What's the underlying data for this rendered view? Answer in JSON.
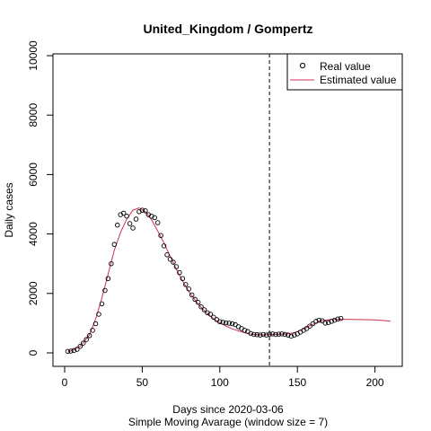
{
  "chart_data": {
    "type": "scatter",
    "title": "United_Kingdom / Gompertz",
    "xlabel": "Days since 2020-03-06",
    "xlabel2": "Simple Moving Avarage (window size = 7)",
    "ylabel": "Daily cases",
    "xlim": [
      0,
      210
    ],
    "ylim": [
      0,
      10000
    ],
    "x_ticks": [
      0,
      50,
      100,
      150,
      200
    ],
    "y_ticks": [
      0,
      2000,
      4000,
      6000,
      8000,
      10000
    ],
    "x_tick_labels": [
      "0",
      "50",
      "100",
      "150",
      "200"
    ],
    "y_tick_labels": [
      "0",
      "2000",
      "4000",
      "6000",
      "8000",
      "10000"
    ],
    "vline_x": 132,
    "legend_position": "top-right",
    "legend": [
      "Real value",
      "Estimated value"
    ],
    "colors": {
      "real": "#000000",
      "estimated": "#cc3355",
      "vline": "#000000"
    },
    "real_value": [
      [
        2,
        50
      ],
      [
        4,
        60
      ],
      [
        6,
        80
      ],
      [
        8,
        120
      ],
      [
        10,
        220
      ],
      [
        12,
        330
      ],
      [
        14,
        450
      ],
      [
        16,
        580
      ],
      [
        18,
        760
      ],
      [
        20,
        980
      ],
      [
        22,
        1300
      ],
      [
        24,
        1650
      ],
      [
        26,
        2100
      ],
      [
        28,
        2500
      ],
      [
        30,
        3000
      ],
      [
        32,
        3650
      ],
      [
        34,
        4300
      ],
      [
        36,
        4650
      ],
      [
        38,
        4700
      ],
      [
        40,
        4600
      ],
      [
        42,
        4350
      ],
      [
        44,
        4200
      ],
      [
        46,
        4500
      ],
      [
        48,
        4750
      ],
      [
        50,
        4800
      ],
      [
        52,
        4780
      ],
      [
        54,
        4650
      ],
      [
        56,
        4600
      ],
      [
        58,
        4550
      ],
      [
        60,
        4380
      ],
      [
        62,
        3950
      ],
      [
        64,
        3600
      ],
      [
        66,
        3300
      ],
      [
        68,
        3150
      ],
      [
        70,
        3050
      ],
      [
        72,
        2900
      ],
      [
        74,
        2700
      ],
      [
        76,
        2500
      ],
      [
        78,
        2300
      ],
      [
        80,
        2150
      ],
      [
        82,
        1950
      ],
      [
        84,
        1800
      ],
      [
        86,
        1700
      ],
      [
        88,
        1550
      ],
      [
        90,
        1450
      ],
      [
        92,
        1350
      ],
      [
        94,
        1300
      ],
      [
        96,
        1200
      ],
      [
        98,
        1120
      ],
      [
        100,
        1050
      ],
      [
        102,
        1030
      ],
      [
        104,
        1010
      ],
      [
        106,
        1000
      ],
      [
        108,
        980
      ],
      [
        110,
        950
      ],
      [
        112,
        880
      ],
      [
        114,
        820
      ],
      [
        116,
        760
      ],
      [
        118,
        720
      ],
      [
        120,
        650
      ],
      [
        122,
        620
      ],
      [
        124,
        610
      ],
      [
        126,
        600
      ],
      [
        128,
        620
      ],
      [
        130,
        600
      ],
      [
        132,
        630
      ],
      [
        134,
        640
      ],
      [
        136,
        620
      ],
      [
        138,
        630
      ],
      [
        140,
        640
      ],
      [
        142,
        620
      ],
      [
        144,
        600
      ],
      [
        146,
        560
      ],
      [
        148,
        600
      ],
      [
        150,
        640
      ],
      [
        152,
        700
      ],
      [
        154,
        760
      ],
      [
        156,
        820
      ],
      [
        158,
        900
      ],
      [
        160,
        980
      ],
      [
        162,
        1060
      ],
      [
        164,
        1100
      ],
      [
        166,
        1080
      ],
      [
        168,
        1000
      ],
      [
        170,
        1020
      ],
      [
        172,
        1060
      ],
      [
        174,
        1100
      ],
      [
        176,
        1140
      ],
      [
        178,
        1160
      ]
    ],
    "estimated_value": [
      [
        2,
        20
      ],
      [
        10,
        220
      ],
      [
        16,
        600
      ],
      [
        20,
        1150
      ],
      [
        24,
        1850
      ],
      [
        28,
        2650
      ],
      [
        32,
        3450
      ],
      [
        36,
        4050
      ],
      [
        40,
        4500
      ],
      [
        44,
        4800
      ],
      [
        48,
        4880
      ],
      [
        52,
        4750
      ],
      [
        56,
        4480
      ],
      [
        60,
        4100
      ],
      [
        64,
        3700
      ],
      [
        68,
        3250
      ],
      [
        72,
        2820
      ],
      [
        76,
        2420
      ],
      [
        80,
        2070
      ],
      [
        84,
        1780
      ],
      [
        88,
        1530
      ],
      [
        92,
        1320
      ],
      [
        96,
        1150
      ],
      [
        100,
        1010
      ],
      [
        104,
        900
      ],
      [
        108,
        810
      ],
      [
        112,
        740
      ],
      [
        116,
        680
      ],
      [
        120,
        630
      ],
      [
        124,
        610
      ],
      [
        128,
        600
      ],
      [
        132,
        610
      ],
      [
        136,
        620
      ],
      [
        140,
        630
      ],
      [
        144,
        640
      ],
      [
        148,
        680
      ],
      [
        152,
        760
      ],
      [
        156,
        860
      ],
      [
        160,
        960
      ],
      [
        164,
        1050
      ],
      [
        168,
        1100
      ],
      [
        172,
        1120
      ],
      [
        176,
        1130
      ],
      [
        180,
        1130
      ],
      [
        190,
        1120
      ],
      [
        200,
        1110
      ],
      [
        210,
        1070
      ]
    ]
  }
}
